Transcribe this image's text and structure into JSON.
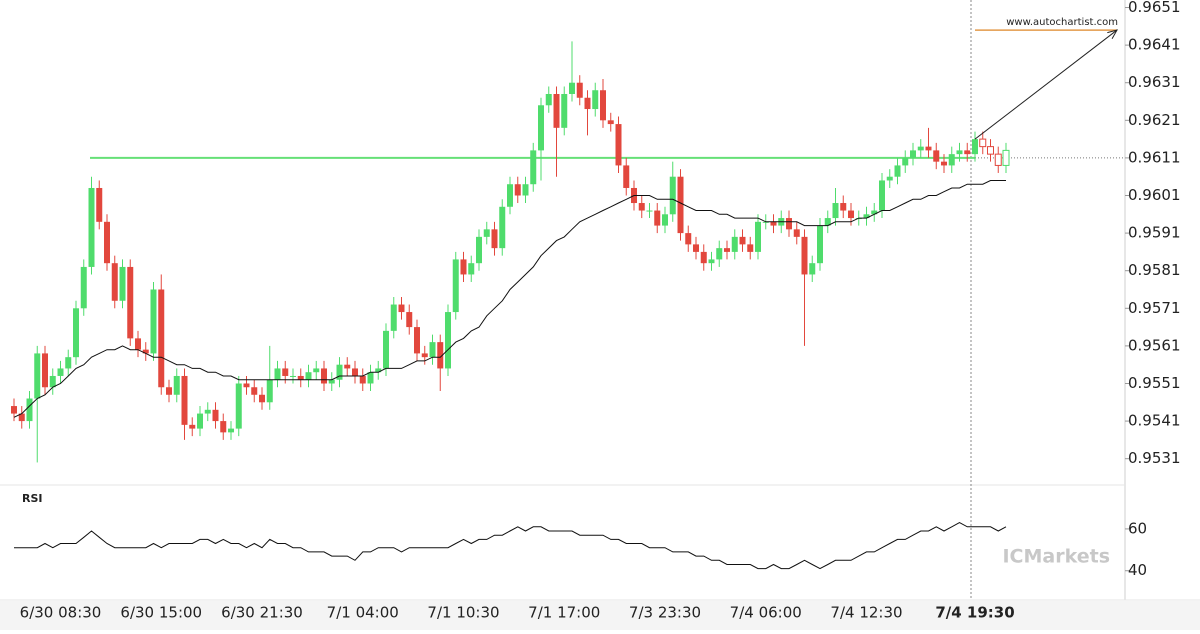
{
  "chart_data": {
    "type": "candlestick",
    "categories": [
      null,
      null,
      null,
      null,
      null,
      null,
      "6/30 08:30",
      null,
      null,
      null,
      null,
      null,
      null,
      null,
      null,
      null,
      null,
      null,
      null,
      "6/30 15:00",
      null,
      null,
      null,
      null,
      null,
      null,
      null,
      null,
      null,
      null,
      null,
      null,
      "6/30 21:30",
      null,
      null,
      null,
      null,
      null,
      null,
      null,
      null,
      null,
      null,
      null,
      null,
      "7/1 04:00",
      null,
      null,
      null,
      null,
      null,
      null,
      null,
      null,
      null,
      null,
      null,
      null,
      "7/1 10:30",
      null,
      null,
      null,
      null,
      null,
      null,
      null,
      null,
      null,
      null,
      null,
      null,
      "7/1 17:00",
      null,
      null,
      null,
      null,
      null,
      null,
      null,
      null,
      null,
      null,
      null,
      null,
      "7/3 23:30",
      null,
      null,
      null,
      null,
      null,
      null,
      null,
      null,
      null,
      null,
      null,
      null,
      "7/4 06:00",
      null,
      null,
      null,
      null,
      null,
      null,
      null,
      null,
      null,
      null,
      null,
      null,
      "7/4 12:30",
      null,
      null,
      null,
      null,
      null,
      null,
      null,
      null,
      null,
      null,
      null,
      null,
      null,
      "7/4 19:30",
      null,
      null,
      null,
      null
    ],
    "candles": [
      [
        0.9545,
        0.9547,
        0.9541,
        0.9543
      ],
      [
        0.9543,
        0.9545,
        0.9539,
        0.9541
      ],
      [
        0.9541,
        0.9549,
        0.9539,
        0.9547
      ],
      [
        0.9547,
        0.9561,
        0.953,
        0.9559
      ],
      [
        0.9559,
        0.9561,
        0.9548,
        0.955
      ],
      [
        0.955,
        0.9555,
        0.9548,
        0.9553
      ],
      [
        0.9553,
        0.9557,
        0.9551,
        0.9555
      ],
      [
        0.9555,
        0.956,
        0.9553,
        0.9558
      ],
      [
        0.9558,
        0.9573,
        0.9556,
        0.9571
      ],
      [
        0.9571,
        0.9584,
        0.9569,
        0.9582
      ],
      [
        0.9582,
        0.9606,
        0.958,
        0.9603
      ],
      [
        0.9603,
        0.9605,
        0.9592,
        0.9594
      ],
      [
        0.9594,
        0.9596,
        0.9581,
        0.9583
      ],
      [
        0.9583,
        0.9585,
        0.9571,
        0.9573
      ],
      [
        0.9573,
        0.9584,
        0.9571,
        0.9582
      ],
      [
        0.9582,
        0.9584,
        0.9561,
        0.9563
      ],
      [
        0.9563,
        0.9565,
        0.9558,
        0.956
      ],
      [
        0.956,
        0.9562,
        0.9557,
        0.9559
      ],
      [
        0.9559,
        0.9578,
        0.9557,
        0.9576
      ],
      [
        0.9576,
        0.958,
        0.9548,
        0.955
      ],
      [
        0.955,
        0.9552,
        0.9546,
        0.9548
      ],
      [
        0.9548,
        0.9555,
        0.9546,
        0.9553
      ],
      [
        0.9553,
        0.9555,
        0.9536,
        0.954
      ],
      [
        0.954,
        0.9542,
        0.9537,
        0.9539
      ],
      [
        0.9539,
        0.9545,
        0.9537,
        0.9543
      ],
      [
        0.9543,
        0.9546,
        0.9541,
        0.9544
      ],
      [
        0.9544,
        0.9546,
        0.9539,
        0.9541
      ],
      [
        0.9541,
        0.9543,
        0.9536,
        0.9538
      ],
      [
        0.9538,
        0.9541,
        0.9536,
        0.9539
      ],
      [
        0.9539,
        0.9553,
        0.9537,
        0.9551
      ],
      [
        0.9551,
        0.9553,
        0.9548,
        0.955
      ],
      [
        0.955,
        0.9552,
        0.9546,
        0.9548
      ],
      [
        0.9548,
        0.955,
        0.9544,
        0.9546
      ],
      [
        0.9546,
        0.9561,
        0.9544,
        0.9552
      ],
      [
        0.9552,
        0.9557,
        0.955,
        0.9555
      ],
      [
        0.9555,
        0.9557,
        0.9551,
        0.9553
      ],
      [
        0.9553,
        0.9555,
        0.9551,
        0.9553
      ],
      [
        0.9553,
        0.9555,
        0.955,
        0.9552
      ],
      [
        0.9552,
        0.9556,
        0.955,
        0.9554
      ],
      [
        0.9554,
        0.9557,
        0.9552,
        0.9555
      ],
      [
        0.9555,
        0.9557,
        0.9549,
        0.9551
      ],
      [
        0.9551,
        0.9554,
        0.9549,
        0.9552
      ],
      [
        0.9552,
        0.9558,
        0.955,
        0.9556
      ],
      [
        0.9556,
        0.9558,
        0.9553,
        0.9555
      ],
      [
        0.9555,
        0.9557,
        0.9551,
        0.9553
      ],
      [
        0.9553,
        0.9555,
        0.9549,
        0.9551
      ],
      [
        0.9551,
        0.9556,
        0.9549,
        0.9554
      ],
      [
        0.9554,
        0.9557,
        0.9552,
        0.9555
      ],
      [
        0.9555,
        0.9567,
        0.9553,
        0.9565
      ],
      [
        0.9565,
        0.9574,
        0.9563,
        0.9572
      ],
      [
        0.9572,
        0.9574,
        0.9568,
        0.957
      ],
      [
        0.957,
        0.9572,
        0.9564,
        0.9566
      ],
      [
        0.9566,
        0.9568,
        0.9557,
        0.9559
      ],
      [
        0.9559,
        0.9561,
        0.9556,
        0.9558
      ],
      [
        0.9558,
        0.9564,
        0.9556,
        0.9562
      ],
      [
        0.9562,
        0.9564,
        0.9549,
        0.9555
      ],
      [
        0.9555,
        0.9572,
        0.9553,
        0.957
      ],
      [
        0.957,
        0.9586,
        0.9568,
        0.9584
      ],
      [
        0.9584,
        0.9586,
        0.9578,
        0.958
      ],
      [
        0.958,
        0.9585,
        0.9578,
        0.9583
      ],
      [
        0.9583,
        0.9592,
        0.9581,
        0.959
      ],
      [
        0.959,
        0.9594,
        0.9588,
        0.9592
      ],
      [
        0.9592,
        0.9594,
        0.9585,
        0.9587
      ],
      [
        0.9587,
        0.96,
        0.9585,
        0.9598
      ],
      [
        0.9598,
        0.9606,
        0.9596,
        0.9604
      ],
      [
        0.9604,
        0.9606,
        0.9599,
        0.9601
      ],
      [
        0.9601,
        0.9606,
        0.9599,
        0.9604
      ],
      [
        0.9604,
        0.9615,
        0.9602,
        0.9613
      ],
      [
        0.9613,
        0.9627,
        0.9605,
        0.9625
      ],
      [
        0.9625,
        0.963,
        0.9623,
        0.9628
      ],
      [
        0.9628,
        0.963,
        0.9606,
        0.9619
      ],
      [
        0.9619,
        0.963,
        0.9617,
        0.9628
      ],
      [
        0.9628,
        0.9642,
        0.9626,
        0.9631
      ],
      [
        0.9631,
        0.9633,
        0.9625,
        0.9627
      ],
      [
        0.9627,
        0.9629,
        0.9617,
        0.9624
      ],
      [
        0.9624,
        0.9631,
        0.9622,
        0.9629
      ],
      [
        0.9629,
        0.9632,
        0.9619,
        0.9621
      ],
      [
        0.9621,
        0.9623,
        0.9618,
        0.962
      ],
      [
        0.962,
        0.9622,
        0.9607,
        0.9609
      ],
      [
        0.9609,
        0.9611,
        0.9601,
        0.9603
      ],
      [
        0.9603,
        0.9605,
        0.9597,
        0.9599
      ],
      [
        0.9599,
        0.9601,
        0.9595,
        0.9597
      ],
      [
        0.9597,
        0.9599,
        0.9595,
        0.9597
      ],
      [
        0.9597,
        0.9599,
        0.9591,
        0.9593
      ],
      [
        0.9593,
        0.9598,
        0.9591,
        0.9596
      ],
      [
        0.9596,
        0.961,
        0.9594,
        0.9606
      ],
      [
        0.9606,
        0.9608,
        0.9589,
        0.9591
      ],
      [
        0.9591,
        0.9593,
        0.9586,
        0.9588
      ],
      [
        0.9588,
        0.959,
        0.9584,
        0.9586
      ],
      [
        0.9586,
        0.9588,
        0.9581,
        0.9583
      ],
      [
        0.9583,
        0.9586,
        0.9581,
        0.9584
      ],
      [
        0.9584,
        0.9589,
        0.9582,
        0.9587
      ],
      [
        0.9587,
        0.9589,
        0.9584,
        0.9586
      ],
      [
        0.9586,
        0.9592,
        0.9584,
        0.959
      ],
      [
        0.959,
        0.9592,
        0.9586,
        0.9588
      ],
      [
        0.9588,
        0.959,
        0.9584,
        0.9586
      ],
      [
        0.9586,
        0.9596,
        0.9584,
        0.9594
      ],
      [
        0.9594,
        0.9596,
        0.9592,
        0.9594
      ],
      [
        0.9594,
        0.9596,
        0.9591,
        0.9593
      ],
      [
        0.9593,
        0.9597,
        0.9591,
        0.9595
      ],
      [
        0.9595,
        0.9597,
        0.959,
        0.9592
      ],
      [
        0.9592,
        0.9594,
        0.9588,
        0.959
      ],
      [
        0.959,
        0.9592,
        0.9561,
        0.958
      ],
      [
        0.958,
        0.9585,
        0.9578,
        0.9583
      ],
      [
        0.9583,
        0.9595,
        0.9581,
        0.9593
      ],
      [
        0.9593,
        0.9597,
        0.9591,
        0.9595
      ],
      [
        0.9595,
        0.9603,
        0.9593,
        0.9599
      ],
      [
        0.9599,
        0.9601,
        0.9595,
        0.9597
      ],
      [
        0.9597,
        0.9599,
        0.9593,
        0.9595
      ],
      [
        0.9595,
        0.9597,
        0.9593,
        0.9595
      ],
      [
        0.9595,
        0.9598,
        0.9593,
        0.9596
      ],
      [
        0.9596,
        0.9599,
        0.9594,
        0.9597
      ],
      [
        0.9597,
        0.9607,
        0.9595,
        0.9605
      ],
      [
        0.9605,
        0.9608,
        0.9603,
        0.9606
      ],
      [
        0.9606,
        0.9611,
        0.9604,
        0.9609
      ],
      [
        0.9609,
        0.9613,
        0.9607,
        0.9611
      ],
      [
        0.9611,
        0.9615,
        0.9609,
        0.9613
      ],
      [
        0.9613,
        0.9616,
        0.9611,
        0.9614
      ],
      [
        0.9614,
        0.9619,
        0.9611,
        0.9613
      ],
      [
        0.9613,
        0.9615,
        0.9608,
        0.961
      ],
      [
        0.961,
        0.9612,
        0.9607,
        0.9609
      ],
      [
        0.9609,
        0.9614,
        0.9607,
        0.9612
      ],
      [
        0.9612,
        0.9615,
        0.961,
        0.9613
      ],
      [
        0.9613,
        0.9615,
        0.961,
        0.9612
      ],
      [
        0.9612,
        0.9618,
        0.961,
        0.9616
      ],
      [
        0.9616,
        0.9618,
        0.9612,
        0.9614
      ],
      [
        0.9614,
        0.9616,
        0.961,
        0.9612
      ],
      [
        0.9612,
        0.9614,
        0.9607,
        0.9609
      ],
      [
        0.9609,
        0.9615,
        0.9607,
        0.9613
      ]
    ],
    "moving_average": [
      0.9542,
      0.9543,
      0.9545,
      0.9547,
      0.9548,
      0.955,
      0.9551,
      0.9553,
      0.9555,
      0.9556,
      0.9558,
      0.9559,
      0.956,
      0.956,
      0.9561,
      0.956,
      0.956,
      0.9559,
      0.9558,
      0.9558,
      0.9557,
      0.9556,
      0.9556,
      0.9555,
      0.9555,
      0.9554,
      0.9554,
      0.9553,
      0.9553,
      0.9552,
      0.9552,
      0.9552,
      0.9552,
      0.9552,
      0.9552,
      0.9552,
      0.9552,
      0.9552,
      0.9552,
      0.9552,
      0.9552,
      0.9552,
      0.9553,
      0.9553,
      0.9553,
      0.9553,
      0.9554,
      0.9554,
      0.9555,
      0.9555,
      0.9555,
      0.9556,
      0.9557,
      0.9557,
      0.9558,
      0.9558,
      0.956,
      0.9562,
      0.9563,
      0.9565,
      0.9566,
      0.9569,
      0.9571,
      0.9573,
      0.9576,
      0.9578,
      0.958,
      0.9582,
      0.9585,
      0.9587,
      0.9589,
      0.959,
      0.9592,
      0.9594,
      0.9595,
      0.9596,
      0.9597,
      0.9598,
      0.9599,
      0.96,
      0.9601,
      0.9601,
      0.9601,
      0.96,
      0.96,
      0.96,
      0.9599,
      0.9598,
      0.9597,
      0.9597,
      0.9597,
      0.9596,
      0.9596,
      0.9595,
      0.9595,
      0.9595,
      0.9595,
      0.9594,
      0.9594,
      0.9594,
      0.9594,
      0.9594,
      0.9593,
      0.9593,
      0.9593,
      0.9593,
      0.9594,
      0.9594,
      0.9594,
      0.9595,
      0.9595,
      0.9596,
      0.9597,
      0.9597,
      0.9598,
      0.9599,
      0.96,
      0.96,
      0.9601,
      0.9601,
      0.9602,
      0.9603,
      0.9603,
      0.9604,
      0.9604,
      0.9604,
      0.9605,
      0.9605,
      0.9605
    ],
    "rsi": [
      51,
      51,
      51,
      51,
      53,
      51,
      53,
      53,
      53,
      56,
      59,
      56,
      53,
      51,
      51,
      51,
      51,
      51,
      53,
      51,
      53,
      53,
      53,
      53,
      55,
      55,
      53,
      55,
      53,
      53,
      51,
      53,
      51,
      55,
      53,
      53,
      51,
      51,
      49,
      49,
      49,
      47,
      47,
      47,
      45,
      49,
      49,
      51,
      51,
      51,
      49,
      51,
      51,
      51,
      51,
      51,
      51,
      53,
      55,
      53,
      55,
      55,
      57,
      57,
      59,
      61,
      59,
      61,
      61,
      59,
      59,
      59,
      59,
      57,
      57,
      57,
      57,
      55,
      55,
      53,
      53,
      53,
      51,
      51,
      51,
      49,
      49,
      49,
      47,
      47,
      45,
      45,
      43,
      43,
      43,
      43,
      41,
      41,
      43,
      41,
      41,
      43,
      45,
      43,
      41,
      43,
      45,
      45,
      45,
      47,
      49,
      49,
      51,
      53,
      55,
      55,
      57,
      59,
      59,
      61,
      59,
      61,
      63,
      61,
      61,
      61,
      61,
      59,
      61
    ],
    "rsi_label": "RSI",
    "ylim": [
      0.9524,
      0.9653
    ],
    "yticks": [
      0.9651,
      0.9641,
      0.9631,
      0.9621,
      0.9611,
      0.9601,
      0.9591,
      0.9581,
      0.9571,
      0.9561,
      0.9551,
      0.9541,
      0.9531
    ],
    "rsi_ylim": [
      26,
      81
    ],
    "rsi_yticks": [
      60,
      40
    ],
    "level": 0.9611,
    "target": 0.9645,
    "target_label": "www.autochartist.com",
    "watermark": "ICMarkets",
    "up_color": "#4fdc6c",
    "down_color": "#e2473d",
    "ma_color": "#111111",
    "level_color": "#66e077",
    "target_color": "#e39a4a",
    "rsi_color": "#111111"
  }
}
